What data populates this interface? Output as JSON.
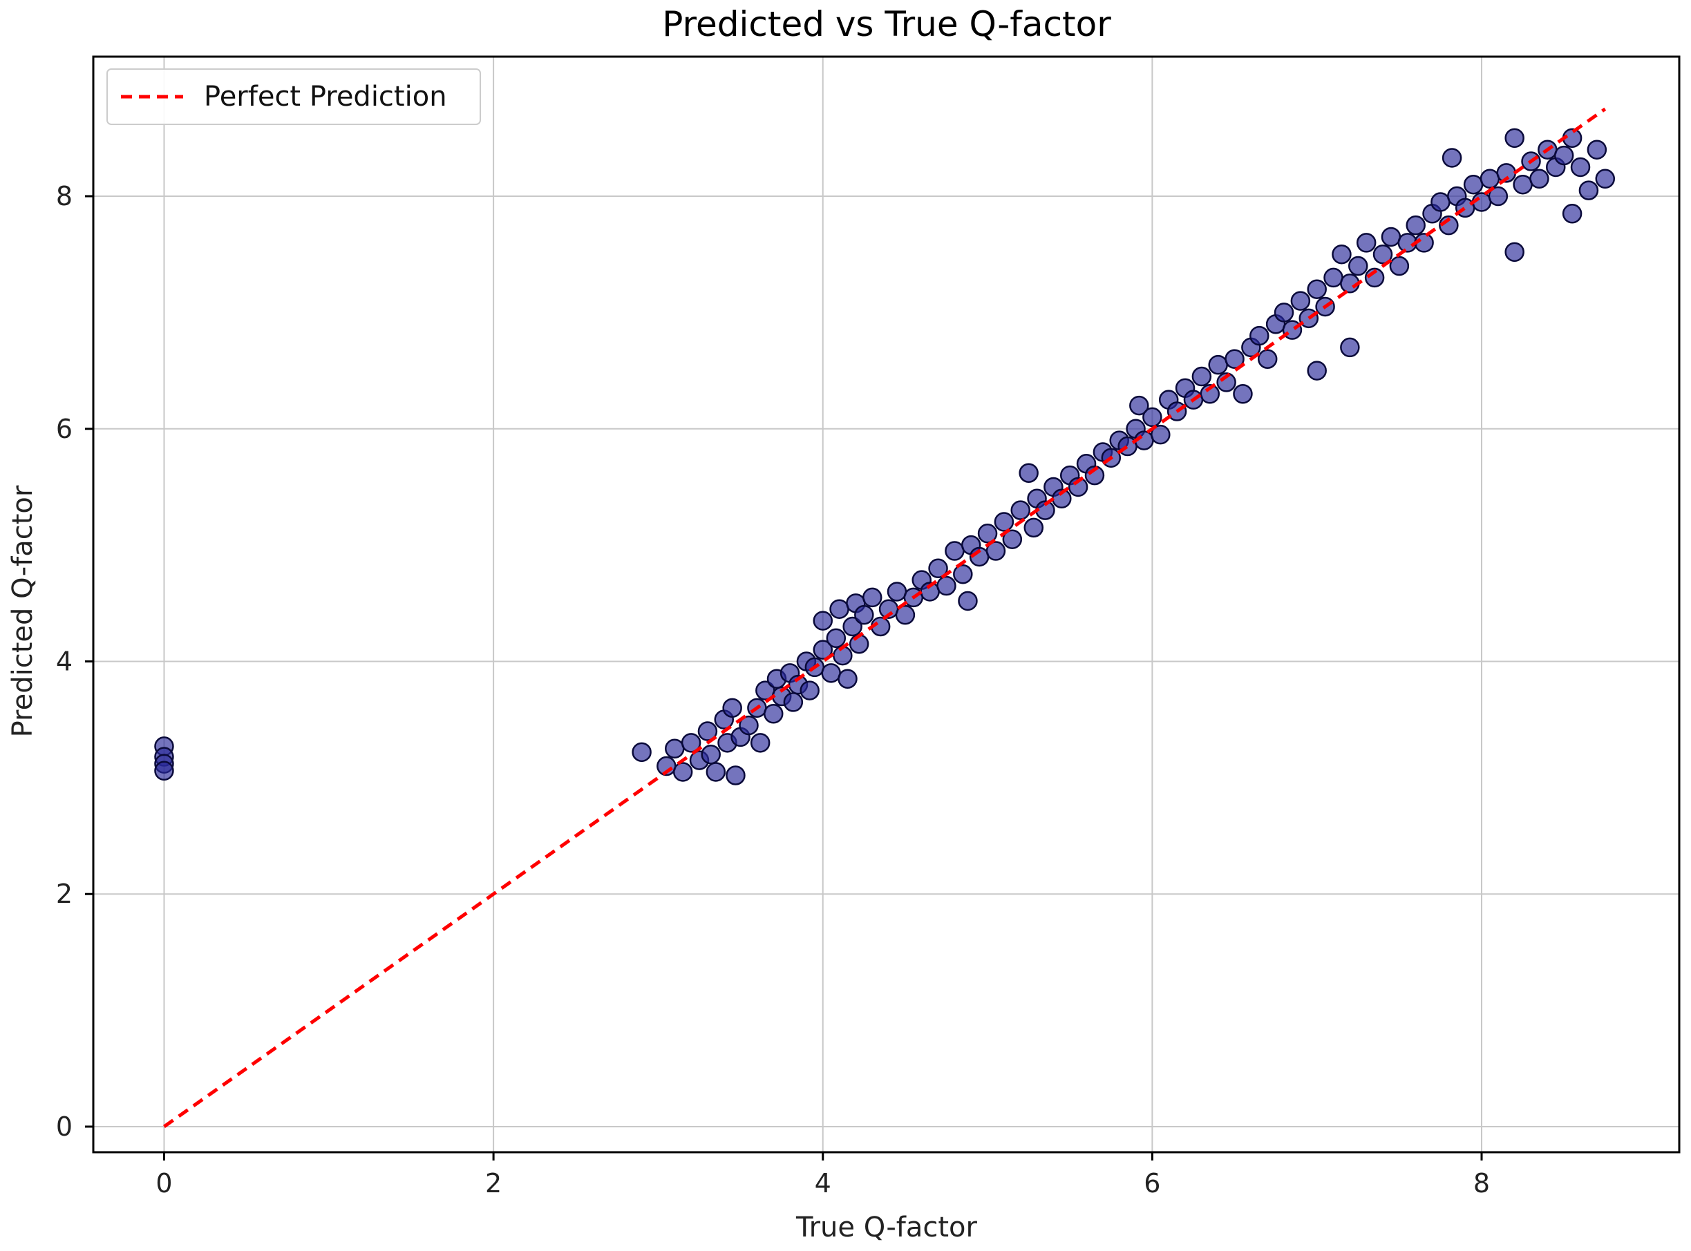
{
  "chart_data": {
    "type": "scatter",
    "title": "Predicted vs True Q-factor",
    "xlabel": "True Q-factor",
    "ylabel": "Predicted Q-factor",
    "xlim": [
      -0.43,
      9.2
    ],
    "ylim": [
      -0.22,
      9.2
    ],
    "x_ticks": [
      0,
      2,
      4,
      6,
      8
    ],
    "y_ticks": [
      0,
      2,
      4,
      6,
      8
    ],
    "x_tick_labels": [
      "0",
      "2",
      "4",
      "6",
      "8"
    ],
    "y_tick_labels": [
      "0",
      "2",
      "4",
      "6",
      "8"
    ],
    "grid": true,
    "legend": {
      "position": "top-left",
      "entries": [
        {
          "label": "Perfect Prediction",
          "style": "dashed",
          "color": "#ff0000"
        }
      ]
    },
    "series": [
      {
        "type": "line",
        "style": "dashed",
        "color": "#ff0000",
        "x": [
          0,
          8.75
        ],
        "y": [
          0,
          8.75
        ]
      },
      {
        "type": "scatter",
        "fill": "#2a2a9a",
        "edge": "#0a0a3a",
        "points": [
          [
            0,
            3.27
          ],
          [
            0,
            3.18
          ],
          [
            0,
            3.12
          ],
          [
            0,
            3.06
          ],
          [
            2.9,
            3.22
          ],
          [
            3.05,
            3.1
          ],
          [
            3.1,
            3.25
          ],
          [
            3.15,
            3.05
          ],
          [
            3.2,
            3.3
          ],
          [
            3.25,
            3.15
          ],
          [
            3.3,
            3.4
          ],
          [
            3.32,
            3.2
          ],
          [
            3.35,
            3.05
          ],
          [
            3.4,
            3.5
          ],
          [
            3.42,
            3.3
          ],
          [
            3.45,
            3.6
          ],
          [
            3.47,
            3.02
          ],
          [
            3.5,
            3.35
          ],
          [
            3.55,
            3.45
          ],
          [
            3.6,
            3.6
          ],
          [
            3.62,
            3.3
          ],
          [
            3.65,
            3.75
          ],
          [
            3.7,
            3.55
          ],
          [
            3.72,
            3.85
          ],
          [
            3.75,
            3.7
          ],
          [
            3.8,
            3.9
          ],
          [
            3.82,
            3.65
          ],
          [
            3.85,
            3.8
          ],
          [
            3.9,
            4.0
          ],
          [
            3.92,
            3.75
          ],
          [
            3.95,
            3.95
          ],
          [
            4.0,
            4.1
          ],
          [
            4.0,
            4.35
          ],
          [
            4.05,
            3.9
          ],
          [
            4.08,
            4.2
          ],
          [
            4.1,
            4.45
          ],
          [
            4.12,
            4.05
          ],
          [
            4.15,
            3.85
          ],
          [
            4.18,
            4.3
          ],
          [
            4.2,
            4.5
          ],
          [
            4.22,
            4.15
          ],
          [
            4.25,
            4.4
          ],
          [
            4.3,
            4.55
          ],
          [
            4.35,
            4.3
          ],
          [
            4.4,
            4.45
          ],
          [
            4.45,
            4.6
          ],
          [
            4.5,
            4.4
          ],
          [
            4.55,
            4.55
          ],
          [
            4.6,
            4.7
          ],
          [
            4.65,
            4.6
          ],
          [
            4.7,
            4.8
          ],
          [
            4.75,
            4.65
          ],
          [
            4.8,
            4.95
          ],
          [
            4.85,
            4.75
          ],
          [
            4.88,
            4.52
          ],
          [
            4.9,
            5.0
          ],
          [
            4.95,
            4.9
          ],
          [
            5.0,
            5.1
          ],
          [
            5.05,
            4.95
          ],
          [
            5.1,
            5.2
          ],
          [
            5.15,
            5.05
          ],
          [
            5.2,
            5.3
          ],
          [
            5.25,
            5.62
          ],
          [
            5.28,
            5.15
          ],
          [
            5.3,
            5.4
          ],
          [
            5.35,
            5.3
          ],
          [
            5.4,
            5.5
          ],
          [
            5.45,
            5.4
          ],
          [
            5.5,
            5.6
          ],
          [
            5.55,
            5.5
          ],
          [
            5.6,
            5.7
          ],
          [
            5.65,
            5.6
          ],
          [
            5.7,
            5.8
          ],
          [
            5.75,
            5.75
          ],
          [
            5.8,
            5.9
          ],
          [
            5.85,
            5.85
          ],
          [
            5.9,
            6.0
          ],
          [
            5.92,
            6.2
          ],
          [
            5.95,
            5.9
          ],
          [
            6.0,
            6.1
          ],
          [
            6.05,
            5.95
          ],
          [
            6.1,
            6.25
          ],
          [
            6.15,
            6.15
          ],
          [
            6.2,
            6.35
          ],
          [
            6.25,
            6.25
          ],
          [
            6.3,
            6.45
          ],
          [
            6.35,
            6.3
          ],
          [
            6.4,
            6.55
          ],
          [
            6.45,
            6.4
          ],
          [
            6.5,
            6.6
          ],
          [
            6.55,
            6.3
          ],
          [
            6.6,
            6.7
          ],
          [
            6.65,
            6.8
          ],
          [
            6.7,
            6.6
          ],
          [
            6.75,
            6.9
          ],
          [
            6.8,
            7.0
          ],
          [
            6.85,
            6.85
          ],
          [
            6.9,
            7.1
          ],
          [
            6.95,
            6.95
          ],
          [
            7.0,
            6.5
          ],
          [
            7.0,
            7.2
          ],
          [
            7.05,
            7.05
          ],
          [
            7.1,
            7.3
          ],
          [
            7.15,
            7.5
          ],
          [
            7.2,
            7.25
          ],
          [
            7.2,
            6.7
          ],
          [
            7.25,
            7.4
          ],
          [
            7.3,
            7.6
          ],
          [
            7.35,
            7.3
          ],
          [
            7.4,
            7.5
          ],
          [
            7.45,
            7.65
          ],
          [
            7.5,
            7.4
          ],
          [
            7.55,
            7.6
          ],
          [
            7.6,
            7.75
          ],
          [
            7.65,
            7.6
          ],
          [
            7.7,
            7.85
          ],
          [
            7.75,
            7.95
          ],
          [
            7.8,
            7.75
          ],
          [
            7.82,
            8.33
          ],
          [
            7.85,
            8.0
          ],
          [
            7.9,
            7.9
          ],
          [
            7.95,
            8.1
          ],
          [
            8.0,
            7.95
          ],
          [
            8.05,
            8.15
          ],
          [
            8.1,
            8.0
          ],
          [
            8.15,
            8.2
          ],
          [
            8.2,
            8.5
          ],
          [
            8.2,
            7.52
          ],
          [
            8.25,
            8.1
          ],
          [
            8.3,
            8.3
          ],
          [
            8.35,
            8.15
          ],
          [
            8.4,
            8.4
          ],
          [
            8.45,
            8.25
          ],
          [
            8.5,
            8.35
          ],
          [
            8.55,
            8.5
          ],
          [
            8.55,
            7.85
          ],
          [
            8.6,
            8.25
          ],
          [
            8.65,
            8.05
          ],
          [
            8.7,
            8.4
          ],
          [
            8.75,
            8.15
          ]
        ]
      }
    ]
  }
}
